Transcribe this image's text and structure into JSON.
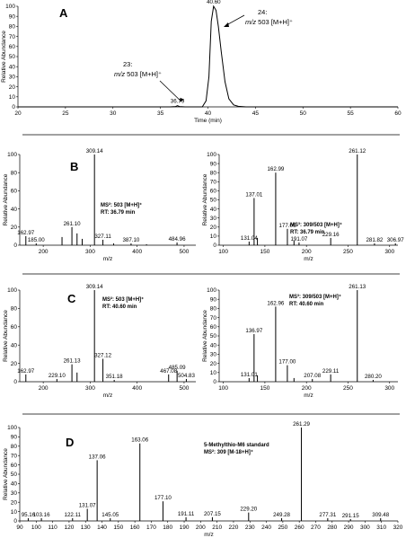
{
  "panels": [
    {
      "id": "A",
      "letter": "A"
    },
    {
      "id": "B",
      "letter": "B"
    },
    {
      "id": "C",
      "letter": "C"
    },
    {
      "id": "D",
      "letter": "D"
    }
  ],
  "chart_data": [
    {
      "id": "A",
      "type": "line",
      "xlabel": "Time (min)",
      "ylabel": "Relative Abundance",
      "xlim": [
        20,
        60
      ],
      "ylim": [
        0,
        100
      ],
      "xticks": [
        20,
        25,
        30,
        35,
        40,
        45,
        50,
        55,
        60
      ],
      "yticks": [
        0,
        10,
        20,
        30,
        40,
        50,
        60,
        70,
        80,
        90,
        100
      ],
      "series": [
        {
          "x": [
            20,
            36.0,
            36.6,
            36.79,
            37.0,
            37.6,
            39.4,
            39.8,
            40.1,
            40.35,
            40.6,
            40.85,
            41.1,
            41.4,
            41.8,
            42.2,
            42.7,
            43.2,
            44.0,
            60
          ],
          "y": [
            0,
            0,
            0.4,
            1.2,
            0.4,
            0,
            0,
            6,
            30,
            85,
            100,
            96,
            80,
            55,
            25,
            8,
            2,
            0.5,
            0,
            0
          ]
        }
      ],
      "peak_labels": [
        {
          "x": 36.79,
          "y": 1.2,
          "label": "36.79"
        },
        {
          "x": 40.6,
          "y": 100,
          "label": "40.60"
        }
      ],
      "annotations": [
        {
          "lines": [
            "23:",
            "m/z 503 [M+H]⁺"
          ],
          "arrow_to": [
            36.79,
            2
          ]
        },
        {
          "lines": [
            "24:",
            "m/z 503 [M+H]⁺"
          ],
          "arrow_to": [
            41.0,
            90
          ]
        }
      ]
    },
    {
      "id": "B1",
      "type": "bar",
      "xlabel": "m/z",
      "ylabel": "Relative Abundance",
      "xlim": [
        150,
        525
      ],
      "ylim": [
        0,
        100
      ],
      "xticks": [
        200,
        300,
        400,
        500
      ],
      "yticks": [
        0,
        20,
        40,
        60,
        80,
        100
      ],
      "peaks": [
        [
          162.97,
          10
        ],
        [
          185.0,
          2
        ],
        [
          240,
          9
        ],
        [
          261.1,
          20
        ],
        [
          272,
          13
        ],
        [
          283,
          7
        ],
        [
          309.14,
          100
        ],
        [
          327.11,
          6
        ],
        [
          350,
          2
        ],
        [
          387.1,
          2
        ],
        [
          420,
          1
        ],
        [
          484.96,
          3
        ]
      ],
      "labels": [
        {
          "x": 162.97,
          "text": "162.97"
        },
        {
          "x": 185.0,
          "text": "185.00"
        },
        {
          "x": 261.1,
          "text": "261.10"
        },
        {
          "x": 309.14,
          "text": "309.14"
        },
        {
          "x": 327.11,
          "text": "327.11"
        },
        {
          "x": 387.1,
          "text": "387.10"
        },
        {
          "x": 484.96,
          "text": "484.96"
        }
      ],
      "annotation": [
        "MS²: 503 [M+H]⁺",
        "RT: 36.79 min"
      ]
    },
    {
      "id": "B2",
      "type": "bar",
      "xlabel": "m/z",
      "ylabel": "Relative Abundance",
      "xlim": [
        95,
        310
      ],
      "ylim": [
        0,
        100
      ],
      "xticks": [
        100,
        150,
        200,
        250,
        300
      ],
      "yticks": [
        0,
        10,
        20,
        30,
        40,
        50,
        60,
        70,
        80,
        90,
        100
      ],
      "peaks": [
        [
          131.04,
          4
        ],
        [
          137.01,
          52
        ],
        [
          141,
          8
        ],
        [
          162.99,
          80
        ],
        [
          177.06,
          18
        ],
        [
          185,
          5
        ],
        [
          191.07,
          3
        ],
        [
          229.16,
          8
        ],
        [
          261.12,
          100
        ],
        [
          281.82,
          2
        ],
        [
          306.97,
          2
        ]
      ],
      "labels": [
        {
          "x": 131.04,
          "text": "131.04"
        },
        {
          "x": 137.01,
          "text": "137.01"
        },
        {
          "x": 162.99,
          "text": "162.99"
        },
        {
          "x": 177.06,
          "text": "177.06"
        },
        {
          "x": 191.07,
          "text": "191.07"
        },
        {
          "x": 229.16,
          "text": "229.16"
        },
        {
          "x": 261.12,
          "text": "261.12"
        },
        {
          "x": 281.82,
          "text": "281.82"
        },
        {
          "x": 306.97,
          "text": "306.97"
        }
      ],
      "annotation": [
        "MS³: 309/503 [M+H]⁺",
        "RT: 36.79 min"
      ]
    },
    {
      "id": "C1",
      "type": "bar",
      "xlabel": "m/z",
      "ylabel": "Relative Abundance",
      "xlim": [
        150,
        525
      ],
      "ylim": [
        0,
        100
      ],
      "xticks": [
        200,
        300,
        400,
        500
      ],
      "yticks": [
        0,
        20,
        40,
        60,
        80,
        100
      ],
      "peaks": [
        [
          162.97,
          8
        ],
        [
          229.1,
          3
        ],
        [
          261.13,
          19
        ],
        [
          272,
          10
        ],
        [
          309.14,
          100
        ],
        [
          327.12,
          25
        ],
        [
          351.18,
          2
        ],
        [
          467.08,
          8
        ],
        [
          485.09,
          12
        ],
        [
          504.83,
          3
        ]
      ],
      "labels": [
        {
          "x": 162.97,
          "text": "162.97"
        },
        {
          "x": 229.1,
          "text": "229.10"
        },
        {
          "x": 261.13,
          "text": "261.13"
        },
        {
          "x": 309.14,
          "text": "309.14"
        },
        {
          "x": 327.12,
          "text": "327.12"
        },
        {
          "x": 351.18,
          "text": "351.18"
        },
        {
          "x": 467.08,
          "text": "467.08"
        },
        {
          "x": 485.09,
          "text": "485.09"
        },
        {
          "x": 504.83,
          "text": "504.83"
        }
      ],
      "annotation": [
        "MS²: 503 [M+H]⁺",
        "RT: 40.60 min"
      ]
    },
    {
      "id": "C2",
      "type": "bar",
      "xlabel": "m/z",
      "ylabel": "Relative Abundance",
      "xlim": [
        95,
        310
      ],
      "ylim": [
        0,
        100
      ],
      "xticks": [
        100,
        150,
        200,
        250,
        300
      ],
      "yticks": [
        0,
        10,
        20,
        30,
        40,
        50,
        60,
        70,
        80,
        90,
        100
      ],
      "peaks": [
        [
          131.01,
          4
        ],
        [
          136.97,
          52
        ],
        [
          141,
          7
        ],
        [
          162.96,
          82
        ],
        [
          177.0,
          18
        ],
        [
          185,
          4
        ],
        [
          207.08,
          3
        ],
        [
          229.11,
          8
        ],
        [
          261.13,
          100
        ],
        [
          280.2,
          2
        ]
      ],
      "labels": [
        {
          "x": 131.01,
          "text": "131.01"
        },
        {
          "x": 136.97,
          "text": "136.97"
        },
        {
          "x": 162.96,
          "text": "162.96"
        },
        {
          "x": 177.0,
          "text": "177.00"
        },
        {
          "x": 207.08,
          "text": "207.08"
        },
        {
          "x": 229.11,
          "text": "229.11"
        },
        {
          "x": 261.13,
          "text": "261.13"
        },
        {
          "x": 280.2,
          "text": "280.20"
        }
      ],
      "annotation": [
        "MS³: 309/503 [M+H]⁺",
        "RT: 40.60 min"
      ]
    },
    {
      "id": "D",
      "type": "bar",
      "xlabel": "m/z",
      "ylabel": "Relative Abundance",
      "xlim": [
        90,
        320
      ],
      "ylim": [
        0,
        100
      ],
      "xticks": [
        90,
        100,
        110,
        120,
        130,
        140,
        150,
        160,
        170,
        180,
        190,
        200,
        210,
        220,
        230,
        240,
        250,
        260,
        270,
        280,
        290,
        300,
        310,
        320
      ],
      "yticks": [
        0,
        10,
        20,
        30,
        40,
        50,
        60,
        70,
        80,
        90,
        100
      ],
      "peaks": [
        [
          95.16,
          3
        ],
        [
          103.16,
          3
        ],
        [
          122.11,
          3
        ],
        [
          131.07,
          13
        ],
        [
          137.06,
          65
        ],
        [
          145.05,
          3
        ],
        [
          163.06,
          83
        ],
        [
          177.1,
          21
        ],
        [
          191.11,
          4
        ],
        [
          207.15,
          4
        ],
        [
          229.2,
          9
        ],
        [
          249.28,
          3
        ],
        [
          261.29,
          100
        ],
        [
          277.31,
          3
        ],
        [
          291.15,
          2
        ],
        [
          309.48,
          3
        ]
      ],
      "labels": [
        {
          "x": 95.16,
          "text": "95.16"
        },
        {
          "x": 103.16,
          "text": "103.16"
        },
        {
          "x": 122.11,
          "text": "122.11"
        },
        {
          "x": 131.07,
          "text": "131.07"
        },
        {
          "x": 137.06,
          "text": "137.06"
        },
        {
          "x": 145.05,
          "text": "145.05"
        },
        {
          "x": 163.06,
          "text": "163.06"
        },
        {
          "x": 177.1,
          "text": "177.10"
        },
        {
          "x": 191.11,
          "text": "191.11"
        },
        {
          "x": 207.15,
          "text": "207.15"
        },
        {
          "x": 229.2,
          "text": "229.20"
        },
        {
          "x": 249.28,
          "text": "249.28"
        },
        {
          "x": 261.29,
          "text": "261.29"
        },
        {
          "x": 277.31,
          "text": "277.31"
        },
        {
          "x": 291.15,
          "text": "291.15"
        },
        {
          "x": 309.48,
          "text": "309.48"
        }
      ],
      "annotation": [
        "5-Methylthio-M6 standard",
        "MS²: 309 [M-18+H]⁺"
      ]
    }
  ]
}
